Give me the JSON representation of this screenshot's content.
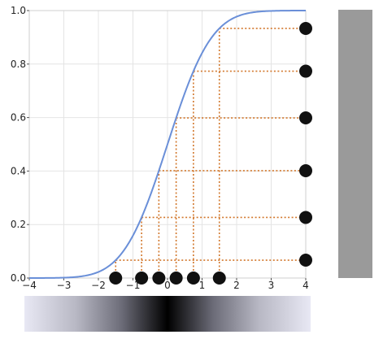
{
  "chart_data": {
    "type": "line",
    "title": "",
    "xlabel": "",
    "ylabel": "",
    "xlim": [
      -4,
      4
    ],
    "ylim": [
      0,
      1
    ],
    "grid": true,
    "x_ticks": [
      -4,
      -3,
      -2,
      -1,
      0,
      1,
      2,
      3,
      4
    ],
    "x_tick_labels": [
      "−4",
      "−3",
      "−2",
      "−1",
      "0",
      "1",
      "2",
      "3",
      "4"
    ],
    "y_ticks": [
      0,
      0.2,
      0.4,
      0.6,
      0.8,
      1.0
    ],
    "y_tick_labels": [
      "0.0",
      "0.2",
      "0.4",
      "0.6",
      "0.8",
      "1.0"
    ],
    "curve": {
      "kind": "normal cumulative distribution",
      "color": "#6a8fd8",
      "x": [
        -4,
        -3.5,
        -3,
        -2.5,
        -2,
        -1.75,
        -1.5,
        -1.25,
        -1,
        -0.75,
        -0.5,
        -0.25,
        0,
        0.25,
        0.5,
        0.75,
        1,
        1.25,
        1.5,
        1.75,
        2,
        2.5,
        3,
        3.5,
        4
      ],
      "y": [
        3e-05,
        0.0002,
        0.0013,
        0.0062,
        0.0228,
        0.0401,
        0.0668,
        0.1056,
        0.1587,
        0.2266,
        0.3085,
        0.4013,
        0.5,
        0.5987,
        0.6915,
        0.7734,
        0.8413,
        0.8944,
        0.9332,
        0.9599,
        0.9772,
        0.9938,
        0.9987,
        0.9998,
        0.99997
      ]
    },
    "points": [
      {
        "x": -1.5,
        "y": 0.0668
      },
      {
        "x": -0.75,
        "y": 0.2266
      },
      {
        "x": -0.25,
        "y": 0.4013
      },
      {
        "x": 0.25,
        "y": 0.5987
      },
      {
        "x": 0.75,
        "y": 0.7734
      },
      {
        "x": 1.5,
        "y": 0.9332
      }
    ],
    "guide_color": "#d2772b",
    "marker_color": "#111111"
  },
  "side_bar": {
    "color": "#9a9a9a"
  },
  "gradient_bar": {
    "edge_color": "#e8e8f4",
    "center_color": "#000000"
  }
}
